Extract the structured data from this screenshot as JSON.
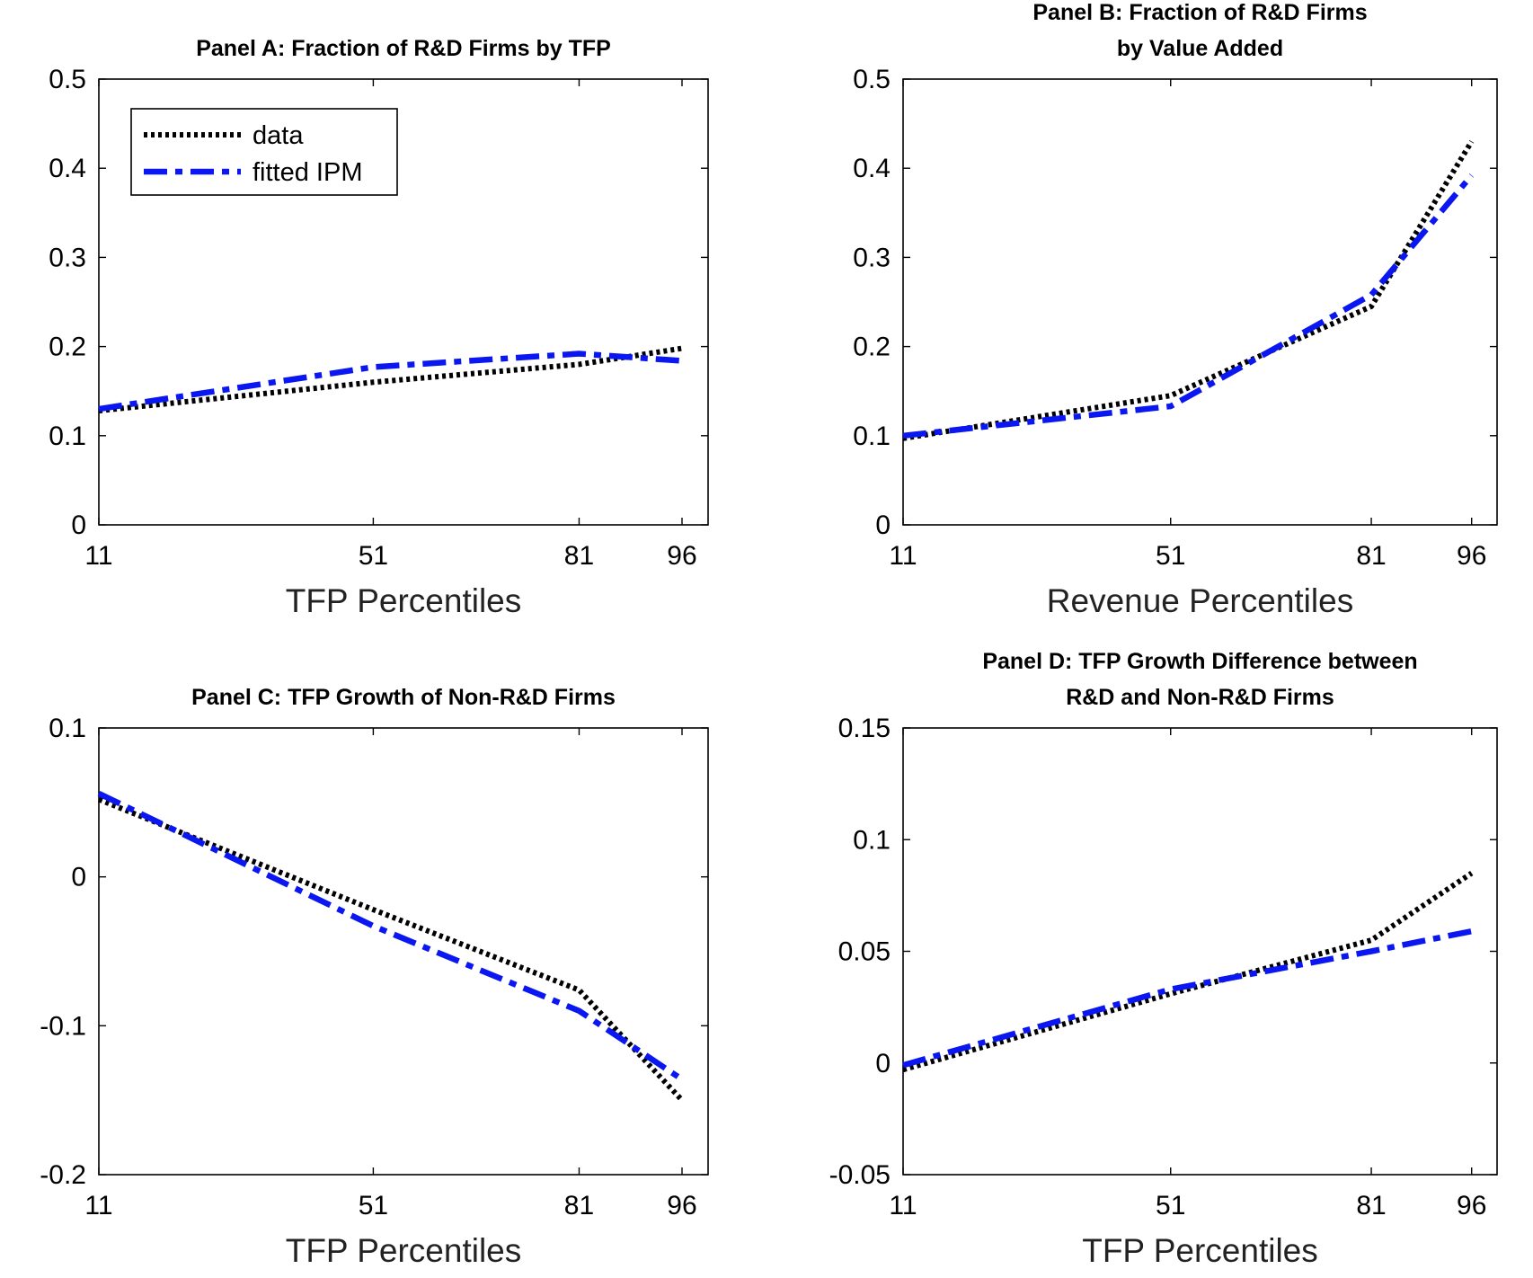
{
  "colors": {
    "data": "#000000",
    "fitted": "#0a17f0",
    "axes": "#000000"
  },
  "legend": {
    "entries": [
      "data",
      "fitted IPM"
    ],
    "placement": "upper-left of Panel A"
  },
  "chart_data": [
    {
      "id": "A",
      "type": "line",
      "title": [
        "Panel A: Fraction of R&D Firms by TFP"
      ],
      "xlabel": "TFP Percentiles",
      "ylabel": "",
      "x": [
        11,
        51,
        81,
        96
      ],
      "xticks": [
        "11",
        "51",
        "81",
        "96"
      ],
      "xlim": [
        11,
        99.8
      ],
      "ylim": [
        0,
        0.5
      ],
      "yticks": [
        0,
        0.1,
        0.2,
        0.3,
        0.4,
        0.5
      ],
      "yticklabels": [
        "0",
        "0.1",
        "0.2",
        "0.3",
        "0.4",
        "0.5"
      ],
      "series": [
        {
          "name": "data",
          "values": [
            0.128,
            0.16,
            0.18,
            0.198
          ]
        },
        {
          "name": "fitted IPM",
          "values": [
            0.13,
            0.177,
            0.192,
            0.184
          ]
        }
      ]
    },
    {
      "id": "B",
      "type": "line",
      "title": [
        "Panel B: Fraction of R&D Firms",
        "by Value Added"
      ],
      "xlabel": "Revenue Percentiles",
      "ylabel": "",
      "x": [
        11,
        51,
        81,
        96
      ],
      "xticks": [
        "11",
        "51",
        "81",
        "96"
      ],
      "xlim": [
        11,
        99.8
      ],
      "ylim": [
        0,
        0.5
      ],
      "yticks": [
        0,
        0.1,
        0.2,
        0.3,
        0.4,
        0.5
      ],
      "yticklabels": [
        "0",
        "0.1",
        "0.2",
        "0.3",
        "0.4",
        "0.5"
      ],
      "series": [
        {
          "name": "data",
          "values": [
            0.097,
            0.145,
            0.245,
            0.43
          ]
        },
        {
          "name": "fitted IPM",
          "values": [
            0.1,
            0.133,
            0.258,
            0.392
          ]
        }
      ]
    },
    {
      "id": "C",
      "type": "line",
      "title": [
        "Panel C: TFP Growth of Non-R&D Firms"
      ],
      "xlabel": "TFP Percentiles",
      "ylabel": "",
      "x": [
        11,
        51,
        81,
        96
      ],
      "xticks": [
        "11",
        "51",
        "81",
        "96"
      ],
      "xlim": [
        11,
        99.8
      ],
      "ylim": [
        -0.2,
        0.1
      ],
      "yticks": [
        -0.2,
        -0.1,
        0,
        0.1
      ],
      "yticklabels": [
        "-0.2",
        "-0.1",
        "0",
        "0.1"
      ],
      "series": [
        {
          "name": "data",
          "values": [
            0.052,
            -0.022,
            -0.076,
            -0.15
          ]
        },
        {
          "name": "fitted IPM",
          "values": [
            0.056,
            -0.033,
            -0.09,
            -0.136
          ]
        }
      ]
    },
    {
      "id": "D",
      "type": "line",
      "title": [
        "Panel D: TFP Growth Difference between",
        "R&D and Non-R&D Firms"
      ],
      "xlabel": "TFP Percentiles",
      "ylabel": "",
      "x": [
        11,
        51,
        81,
        96
      ],
      "xticks": [
        "11",
        "51",
        "81",
        "96"
      ],
      "xlim": [
        11,
        99.8
      ],
      "ylim": [
        -0.05,
        0.15
      ],
      "yticks": [
        -0.05,
        0,
        0.05,
        0.1,
        0.15
      ],
      "yticklabels": [
        "-0.05",
        "0",
        "0.05",
        "0.1",
        "0.15"
      ],
      "series": [
        {
          "name": "data",
          "values": [
            -0.003,
            0.031,
            0.055,
            0.085
          ]
        },
        {
          "name": "fitted IPM",
          "values": [
            -0.001,
            0.033,
            0.05,
            0.059
          ]
        }
      ]
    }
  ]
}
